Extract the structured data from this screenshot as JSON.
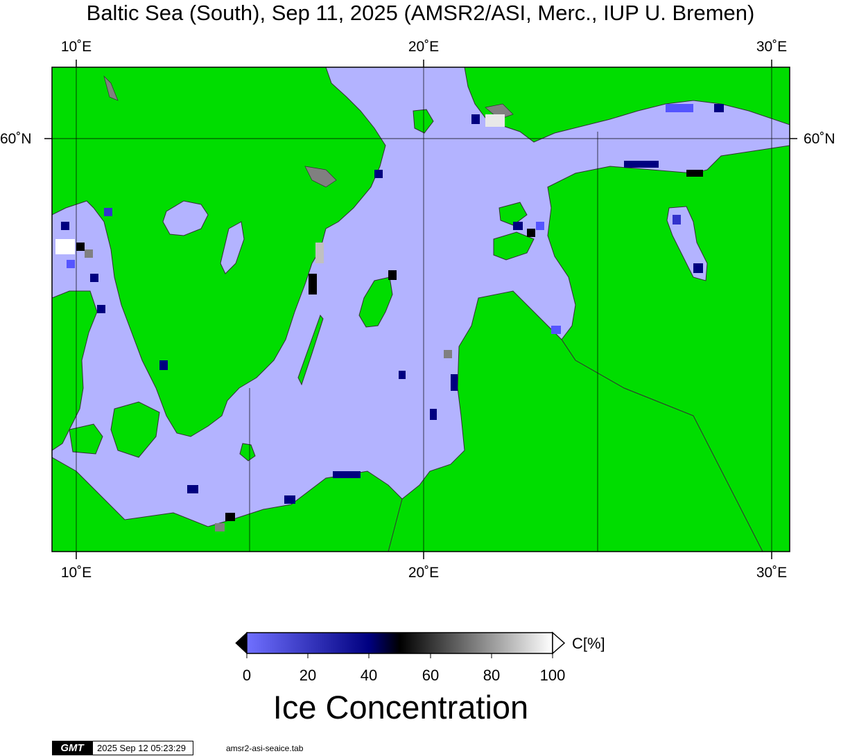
{
  "title": "Baltic Sea (South), Sep 11, 2025 (AMSR2/ASI, Merc., IUP U. Bremen)",
  "map": {
    "lon_ticks": [
      "10˚E",
      "20˚E",
      "30˚E"
    ],
    "lat_ticks": [
      "60˚N"
    ],
    "lon_range_deg": [
      9.3,
      30.5
    ],
    "lat_tick_values": [
      60
    ],
    "colors": {
      "land": "#00dd00",
      "open_water": "#b3b3ff",
      "coastline": "#333333",
      "landmask_gray": "#808080"
    }
  },
  "colorbar": {
    "unit": "C[%]",
    "tick_labels": [
      "0",
      "20",
      "40",
      "60",
      "80",
      "100"
    ],
    "range": [
      0,
      100
    ],
    "stops": [
      "#7070ff",
      "#000080",
      "#000000",
      "#ffffff"
    ],
    "title": "Ice Concentration"
  },
  "footer": {
    "logo": "GMT",
    "timestamp": "2025 Sep 12 05:23:29",
    "label": "amsr2-asi-seaice.tab"
  }
}
